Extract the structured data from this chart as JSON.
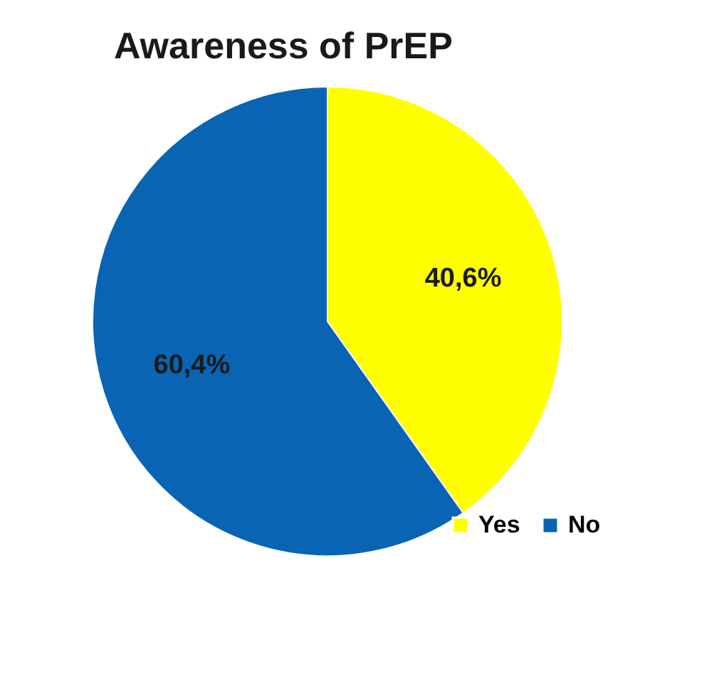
{
  "chart_data": {
    "type": "pie",
    "title": "Awareness of PrEP",
    "categories": [
      "Yes",
      "No"
    ],
    "values": [
      40.6,
      60.4
    ],
    "colors": [
      "#ffff00",
      "#0a64b4"
    ],
    "value_labels": [
      "40,6%",
      "60,4%"
    ],
    "legend": "bottom right"
  }
}
